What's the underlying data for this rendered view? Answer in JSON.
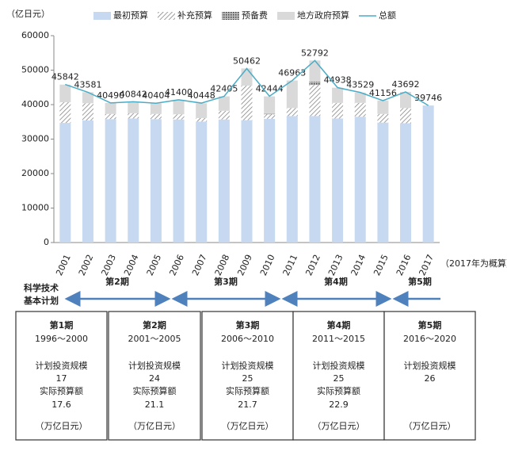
{
  "chart_data": {
    "type": "bar",
    "y_label": "（亿日元）",
    "note": "（2017年为概算）",
    "categories": [
      "2001",
      "2002",
      "2003",
      "2004",
      "2005",
      "2006",
      "2007",
      "2008",
      "2009",
      "2010",
      "2011",
      "2012",
      "2013",
      "2014",
      "2015",
      "2016",
      "2017"
    ],
    "series": [
      {
        "name": "最初预算",
        "color": "#c6d9f0",
        "pattern": "solid",
        "values": [
          34700,
          35400,
          35800,
          36000,
          35800,
          35700,
          35100,
          35700,
          35500,
          35900,
          36700,
          36700,
          36000,
          36500,
          34800,
          34600,
          39746
        ]
      },
      {
        "name": "补充预算",
        "color": "#7f7f7f",
        "pattern": "diagonal",
        "values": [
          6000,
          5000,
          1500,
          1500,
          1500,
          1500,
          1000,
          2500,
          10000,
          1300,
          2300,
          9000,
          4500,
          4000,
          2500,
          4400,
          0
        ]
      },
      {
        "name": "预备费",
        "color": "#595959",
        "pattern": "dots",
        "values": [
          0,
          0,
          0,
          0,
          0,
          0,
          0,
          0,
          0,
          300,
          0,
          1000,
          0,
          0,
          0,
          0,
          0
        ]
      },
      {
        "name": "地方政府预算",
        "color": "#d9d9d9",
        "pattern": "solid",
        "values": [
          5100,
          3200,
          3200,
          3300,
          3100,
          4200,
          4300,
          4200,
          5000,
          4900,
          8000,
          6100,
          4400,
          3000,
          3900,
          4700,
          0
        ]
      },
      {
        "name": "总额",
        "type": "line",
        "color": "#4bacc6",
        "values": [
          45842,
          43581,
          40490,
          40842,
          40404,
          41400,
          40448,
          42405,
          50462,
          42444,
          46963,
          52792,
          44938,
          43529,
          41156,
          43692,
          39746
        ]
      }
    ],
    "ylim": [
      0,
      60000
    ],
    "yticks": [
      0,
      10000,
      20000,
      30000,
      40000,
      50000,
      60000
    ],
    "grid": false,
    "legend": "top"
  },
  "plan": {
    "label": [
      "科学技术",
      "基本计划"
    ],
    "arrows": [
      "第2期",
      "第3期",
      "第4期",
      "第5期"
    ],
    "boxes": [
      {
        "period": "第1期",
        "years": "1996～2000",
        "planned_label": "计划投资规模",
        "planned": 17,
        "actual_label": "实际预算额",
        "actual": 17.6,
        "unit": "（万亿日元）"
      },
      {
        "period": "第2期",
        "years": "2001～2005",
        "planned_label": "计划投资规模",
        "planned": 24,
        "actual_label": "实际预算额",
        "actual": 21.1,
        "unit": "（万亿日元）"
      },
      {
        "period": "第3期",
        "years": "2006～2010",
        "planned_label": "计划投资规模",
        "planned": 25,
        "actual_label": "实际预算额",
        "actual": 21.7,
        "unit": "（万亿日元）"
      },
      {
        "period": "第4期",
        "years": "2011～2015",
        "planned_label": "计划投资规模",
        "planned": 25,
        "actual_label": "实际预算额",
        "actual": 22.9,
        "unit": "（万亿日元）"
      },
      {
        "period": "第5期",
        "years": "2016～2020",
        "planned_label": "计划投资规模",
        "planned": 26,
        "unit": "（万亿日元）"
      }
    ]
  }
}
